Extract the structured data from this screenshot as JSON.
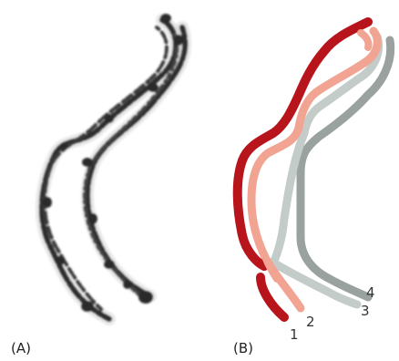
{
  "panels": [
    {
      "id": "A",
      "label": "(A)"
    },
    {
      "id": "B",
      "label": "(B)"
    }
  ],
  "strands": [
    {
      "label": "1",
      "color": "#b8141c"
    },
    {
      "label": "2",
      "color": "#f2a493"
    },
    {
      "label": "3",
      "color": "#c4ccca"
    },
    {
      "label": "4",
      "color": "#9aa29f"
    }
  ],
  "colors": {
    "micrograph_ink": "#2f2f2f",
    "background": "#ffffff"
  }
}
